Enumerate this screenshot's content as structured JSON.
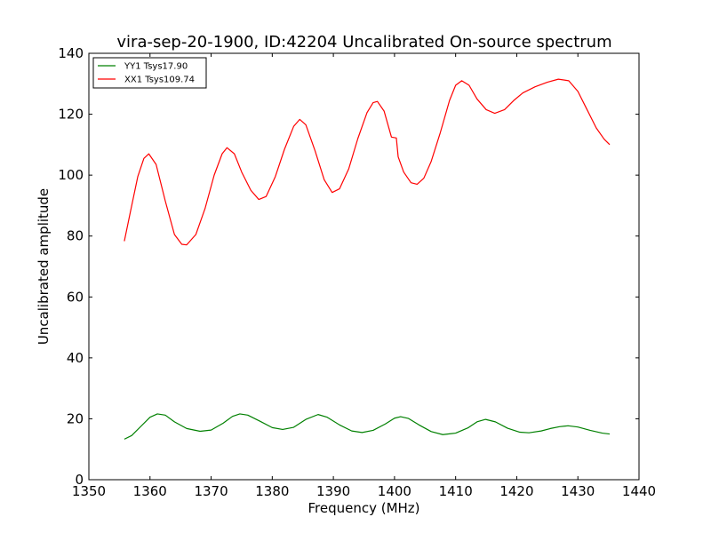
{
  "chart_data": {
    "type": "line",
    "title": "vira-sep-20-1900, ID:42204 Uncalibrated On-source spectrum",
    "xlabel": "Frequency (MHz)",
    "ylabel": "Uncalibrated amplitude",
    "xlim": [
      1350,
      1440
    ],
    "ylim": [
      0,
      140
    ],
    "xticks": [
      1350,
      1360,
      1370,
      1380,
      1390,
      1400,
      1410,
      1420,
      1430,
      1440
    ],
    "yticks": [
      0,
      20,
      40,
      60,
      80,
      100,
      120,
      140
    ],
    "grid": false,
    "legend_position": "top-left",
    "series": [
      {
        "name": "YY1 Tsys17.90",
        "color": "#008000",
        "points": [
          [
            1355.8,
            13.3
          ],
          [
            1357.0,
            14.5
          ],
          [
            1358.5,
            17.5
          ],
          [
            1360.0,
            20.5
          ],
          [
            1361.2,
            21.6
          ],
          [
            1362.5,
            21.2
          ],
          [
            1364.0,
            19.0
          ],
          [
            1366.0,
            16.8
          ],
          [
            1368.2,
            15.9
          ],
          [
            1370.0,
            16.3
          ],
          [
            1372.0,
            18.6
          ],
          [
            1373.5,
            20.8
          ],
          [
            1374.7,
            21.6
          ],
          [
            1376.0,
            21.2
          ],
          [
            1378.0,
            19.2
          ],
          [
            1380.0,
            17.1
          ],
          [
            1381.7,
            16.5
          ],
          [
            1383.5,
            17.2
          ],
          [
            1385.5,
            19.8
          ],
          [
            1387.5,
            21.4
          ],
          [
            1389.0,
            20.5
          ],
          [
            1391.0,
            18.0
          ],
          [
            1393.0,
            16.0
          ],
          [
            1394.7,
            15.5
          ],
          [
            1396.5,
            16.2
          ],
          [
            1398.5,
            18.3
          ],
          [
            1400.0,
            20.2
          ],
          [
            1401.0,
            20.7
          ],
          [
            1402.3,
            20.1
          ],
          [
            1404.0,
            18.0
          ],
          [
            1406.0,
            15.8
          ],
          [
            1407.9,
            14.8
          ],
          [
            1410.0,
            15.3
          ],
          [
            1412.0,
            17.0
          ],
          [
            1413.5,
            19.0
          ],
          [
            1414.9,
            19.8
          ],
          [
            1416.5,
            19.0
          ],
          [
            1418.5,
            16.9
          ],
          [
            1420.5,
            15.6
          ],
          [
            1422.0,
            15.4
          ],
          [
            1424.0,
            16.0
          ],
          [
            1425.5,
            16.8
          ],
          [
            1427.0,
            17.4
          ],
          [
            1428.4,
            17.7
          ],
          [
            1430.0,
            17.3
          ],
          [
            1432.0,
            16.2
          ],
          [
            1434.0,
            15.3
          ],
          [
            1435.2,
            15.0
          ]
        ]
      },
      {
        "name": "XX1 Tsys109.74",
        "color": "#ff0000",
        "points": [
          [
            1355.8,
            78.3
          ],
          [
            1356.8,
            88.0
          ],
          [
            1358.0,
            99.5
          ],
          [
            1359.0,
            105.5
          ],
          [
            1359.8,
            107.0
          ],
          [
            1361.0,
            103.5
          ],
          [
            1362.5,
            91.5
          ],
          [
            1364.0,
            80.5
          ],
          [
            1365.2,
            77.3
          ],
          [
            1366.0,
            77.1
          ],
          [
            1367.5,
            80.5
          ],
          [
            1369.0,
            89.0
          ],
          [
            1370.5,
            100.0
          ],
          [
            1371.8,
            107.0
          ],
          [
            1372.6,
            109.0
          ],
          [
            1373.8,
            107.0
          ],
          [
            1375.0,
            101.0
          ],
          [
            1376.5,
            95.0
          ],
          [
            1377.8,
            92.0
          ],
          [
            1379.0,
            93.0
          ],
          [
            1380.5,
            99.5
          ],
          [
            1382.0,
            108.5
          ],
          [
            1383.5,
            116.0
          ],
          [
            1384.5,
            118.3
          ],
          [
            1385.5,
            116.5
          ],
          [
            1387.0,
            108.0
          ],
          [
            1388.5,
            98.5
          ],
          [
            1389.8,
            94.3
          ],
          [
            1391.0,
            95.5
          ],
          [
            1392.5,
            102.0
          ],
          [
            1394.0,
            112.0
          ],
          [
            1395.5,
            120.5
          ],
          [
            1396.5,
            123.8
          ],
          [
            1397.2,
            124.2
          ],
          [
            1398.3,
            121.0
          ],
          [
            1399.5,
            112.5
          ],
          [
            1400.3,
            112.2
          ],
          [
            1400.6,
            106.0
          ],
          [
            1401.5,
            101.0
          ],
          [
            1402.7,
            97.5
          ],
          [
            1403.7,
            97.0
          ],
          [
            1404.8,
            99.0
          ],
          [
            1406.0,
            104.5
          ],
          [
            1407.5,
            114.0
          ],
          [
            1409.0,
            124.5
          ],
          [
            1410.0,
            129.5
          ],
          [
            1411.0,
            131.0
          ],
          [
            1412.2,
            129.5
          ],
          [
            1413.5,
            125.0
          ],
          [
            1415.0,
            121.5
          ],
          [
            1416.4,
            120.3
          ],
          [
            1418.0,
            121.5
          ],
          [
            1419.5,
            124.5
          ],
          [
            1421.0,
            127.0
          ],
          [
            1423.0,
            129.0
          ],
          [
            1425.0,
            130.5
          ],
          [
            1426.8,
            131.5
          ],
          [
            1428.5,
            131.0
          ],
          [
            1430.0,
            127.5
          ],
          [
            1431.5,
            121.5
          ],
          [
            1433.0,
            115.5
          ],
          [
            1434.3,
            111.8
          ],
          [
            1435.2,
            110.0
          ]
        ]
      }
    ]
  }
}
